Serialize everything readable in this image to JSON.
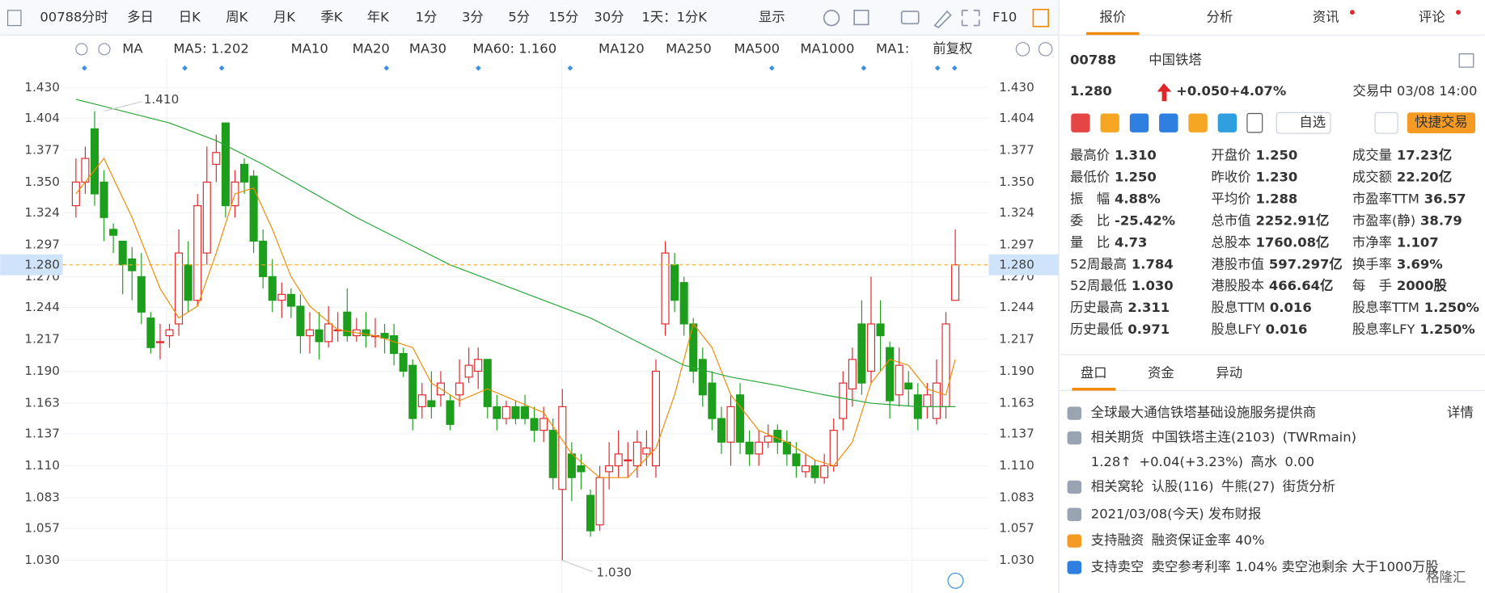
{
  "toolbar": {
    "code": "00788",
    "tabs": [
      "分时",
      "多日",
      "日K",
      "周K",
      "月K",
      "季K",
      "年K",
      "1分",
      "3分",
      "5分",
      "15分",
      "30分",
      "1天：1分K",
      "显示"
    ],
    "active": 2,
    "f10": "F10"
  },
  "ma_legend": {
    "label": "MA",
    "items": [
      {
        "text": "MA5: 1.202",
        "color": "#f08a00"
      },
      {
        "text": "MA10",
        "color": "#bfe0f5"
      },
      {
        "text": "MA20",
        "color": "#f3c6e6"
      },
      {
        "text": "MA30",
        "color": "#cfd8e6"
      },
      {
        "text": "MA60: 1.160",
        "color": "#27a536"
      },
      {
        "text": "MA120",
        "color": "#f6c2cf"
      },
      {
        "text": "MA250",
        "color": "#a8ecf2"
      },
      {
        "text": "MA500",
        "color": "#f7e3a6"
      },
      {
        "text": "MA1000",
        "color": "#d9d2f3"
      },
      {
        "text": "MA1:",
        "color": "#d6dbe3"
      }
    ],
    "adjust": "前复权"
  },
  "chart": {
    "type": "candlestick",
    "ylim": [
      1.008,
      1.448
    ],
    "yticks": [
      {
        "value": 1.43,
        "label": "1.430"
      },
      {
        "value": 1.404,
        "label": "1.404"
      },
      {
        "value": 1.377,
        "label": "1.377"
      },
      {
        "value": 1.35,
        "label": "1.350"
      },
      {
        "value": 1.324,
        "label": "1.324"
      },
      {
        "value": 1.297,
        "label": "1.297"
      },
      {
        "value": 1.27,
        "label": "1.270"
      },
      {
        "value": 1.244,
        "label": "1.244"
      },
      {
        "value": 1.217,
        "label": "1.217"
      },
      {
        "value": 1.19,
        "label": "1.190"
      },
      {
        "value": 1.163,
        "label": "1.163"
      },
      {
        "value": 1.137,
        "label": "1.137"
      },
      {
        "value": 1.11,
        "label": "1.110"
      },
      {
        "value": 1.083,
        "label": "1.083"
      },
      {
        "value": 1.057,
        "label": "1.057"
      },
      {
        "value": 1.03,
        "label": "1.030"
      }
    ],
    "up_color": "#e0262a",
    "down_color": "#1d9e1d",
    "last_price": {
      "value": 1.28,
      "label": "1.280"
    },
    "annotations": [
      {
        "value": 1.41,
        "label": "1.410",
        "index": 3
      },
      {
        "value": 1.03,
        "label": "1.030",
        "index": 52
      }
    ],
    "candles": {
      "open": [
        1.33,
        1.35,
        1.395,
        1.35,
        1.31,
        1.3,
        1.285,
        1.27,
        1.235,
        1.215,
        1.22,
        1.23,
        1.28,
        1.25,
        1.29,
        1.365,
        1.4,
        1.33,
        1.365,
        1.355,
        1.3,
        1.27,
        1.25,
        1.255,
        1.245,
        1.22,
        1.225,
        1.215,
        1.225,
        1.24,
        1.22,
        1.225,
        1.22,
        1.222,
        1.22,
        1.205,
        1.195,
        1.16,
        1.165,
        1.17,
        1.165,
        1.17,
        1.185,
        1.19,
        1.2,
        1.16,
        1.15,
        1.16,
        1.16,
        1.15,
        1.14,
        1.14,
        1.09,
        1.12,
        1.11,
        1.085,
        1.06,
        1.105,
        1.11,
        1.115,
        1.11,
        1.12,
        1.11,
        1.23,
        1.28,
        1.265,
        1.23,
        1.2,
        1.18,
        1.15,
        1.13,
        1.17,
        1.13,
        1.12,
        1.13,
        1.14,
        1.13,
        1.12,
        1.105,
        1.11,
        1.1,
        1.11,
        1.15,
        1.175,
        1.23,
        1.19,
        1.23,
        1.21,
        1.17,
        1.18,
        1.17,
        1.16,
        1.15,
        1.16,
        1.25
      ],
      "high": [
        1.37,
        1.38,
        1.41,
        1.36,
        1.315,
        1.3,
        1.295,
        1.29,
        1.24,
        1.23,
        1.23,
        1.31,
        1.3,
        1.34,
        1.38,
        1.39,
        1.4,
        1.36,
        1.37,
        1.36,
        1.31,
        1.285,
        1.265,
        1.26,
        1.255,
        1.24,
        1.24,
        1.245,
        1.24,
        1.26,
        1.235,
        1.24,
        1.235,
        1.23,
        1.23,
        1.21,
        1.2,
        1.18,
        1.19,
        1.19,
        1.17,
        1.2,
        1.21,
        1.21,
        1.2,
        1.17,
        1.165,
        1.165,
        1.17,
        1.16,
        1.16,
        1.15,
        1.175,
        1.13,
        1.12,
        1.09,
        1.11,
        1.13,
        1.14,
        1.13,
        1.14,
        1.14,
        1.2,
        1.3,
        1.29,
        1.27,
        1.235,
        1.21,
        1.19,
        1.16,
        1.17,
        1.18,
        1.14,
        1.14,
        1.145,
        1.145,
        1.14,
        1.13,
        1.12,
        1.115,
        1.12,
        1.15,
        1.19,
        1.21,
        1.25,
        1.27,
        1.25,
        1.215,
        1.21,
        1.19,
        1.18,
        1.18,
        1.2,
        1.24,
        1.31
      ],
      "low": [
        1.32,
        1.34,
        1.33,
        1.3,
        1.29,
        1.255,
        1.25,
        1.23,
        1.205,
        1.2,
        1.21,
        1.22,
        1.24,
        1.245,
        1.28,
        1.35,
        1.32,
        1.32,
        1.34,
        1.29,
        1.26,
        1.24,
        1.235,
        1.235,
        1.205,
        1.205,
        1.2,
        1.21,
        1.215,
        1.215,
        1.215,
        1.21,
        1.21,
        1.205,
        1.195,
        1.185,
        1.14,
        1.15,
        1.15,
        1.16,
        1.14,
        1.16,
        1.18,
        1.175,
        1.15,
        1.14,
        1.145,
        1.145,
        1.145,
        1.13,
        1.13,
        1.09,
        1.03,
        1.08,
        1.09,
        1.05,
        1.055,
        1.09,
        1.1,
        1.1,
        1.1,
        1.11,
        1.1,
        1.22,
        1.24,
        1.22,
        1.18,
        1.16,
        1.14,
        1.12,
        1.11,
        1.12,
        1.11,
        1.11,
        1.125,
        1.12,
        1.11,
        1.1,
        1.1,
        1.095,
        1.095,
        1.105,
        1.14,
        1.16,
        1.17,
        1.18,
        1.19,
        1.15,
        1.16,
        1.16,
        1.14,
        1.15,
        1.145,
        1.15,
        1.25
      ],
      "close": [
        1.35,
        1.37,
        1.34,
        1.32,
        1.305,
        1.28,
        1.275,
        1.24,
        1.21,
        1.215,
        1.225,
        1.29,
        1.25,
        1.33,
        1.35,
        1.375,
        1.33,
        1.35,
        1.35,
        1.3,
        1.27,
        1.25,
        1.255,
        1.245,
        1.22,
        1.225,
        1.215,
        1.23,
        1.225,
        1.22,
        1.225,
        1.22,
        1.22,
        1.218,
        1.205,
        1.19,
        1.15,
        1.17,
        1.16,
        1.18,
        1.145,
        1.18,
        1.195,
        1.2,
        1.16,
        1.15,
        1.16,
        1.15,
        1.15,
        1.14,
        1.15,
        1.1,
        1.16,
        1.1,
        1.105,
        1.055,
        1.1,
        1.11,
        1.12,
        1.115,
        1.13,
        1.125,
        1.19,
        1.29,
        1.25,
        1.23,
        1.19,
        1.17,
        1.15,
        1.13,
        1.16,
        1.13,
        1.12,
        1.13,
        1.135,
        1.13,
        1.12,
        1.11,
        1.11,
        1.1,
        1.11,
        1.14,
        1.18,
        1.2,
        1.18,
        1.23,
        1.22,
        1.165,
        1.195,
        1.175,
        1.15,
        1.17,
        1.18,
        1.23,
        1.28
      ]
    },
    "series": [
      {
        "name": "MA5",
        "color": "#f08a00",
        "x": [
          0,
          3,
          6,
          9,
          11,
          13,
          15,
          17,
          19,
          21,
          23,
          25,
          28,
          32,
          36,
          38,
          41,
          44,
          47,
          50,
          53,
          56,
          59,
          62,
          64,
          66,
          68,
          70,
          73,
          76,
          79,
          81,
          83,
          85,
          87,
          89,
          91,
          93,
          94
        ],
        "values": [
          1.34,
          1.37,
          1.32,
          1.26,
          1.235,
          1.245,
          1.29,
          1.34,
          1.345,
          1.31,
          1.27,
          1.245,
          1.225,
          1.22,
          1.21,
          1.18,
          1.165,
          1.175,
          1.165,
          1.155,
          1.12,
          1.1,
          1.1,
          1.125,
          1.17,
          1.23,
          1.21,
          1.17,
          1.14,
          1.13,
          1.115,
          1.11,
          1.13,
          1.18,
          1.2,
          1.195,
          1.175,
          1.17,
          1.2
        ]
      },
      {
        "name": "MA60",
        "color": "#27a536",
        "x": [
          0,
          10,
          15,
          20,
          30,
          40,
          50,
          55,
          60,
          65,
          70,
          75,
          80,
          85,
          90,
          94
        ],
        "values": [
          1.42,
          1.4,
          1.385,
          1.365,
          1.32,
          1.28,
          1.25,
          1.235,
          1.215,
          1.195,
          1.185,
          1.178,
          1.17,
          1.163,
          1.16,
          1.16
        ]
      }
    ]
  },
  "panel": {
    "tabs": [
      "报价",
      "分析",
      "资讯",
      "评论"
    ],
    "code": "00788",
    "name": "中国铁塔",
    "price": "1.280",
    "change": "+0.050",
    "change_pct": "+4.07%",
    "status": "交易中 03/08 14:00",
    "watch": "自选",
    "trade": "快捷交易",
    "stats": [
      [
        {
          "label": "最高价",
          "value": "1.310",
          "color": "#e0262a"
        },
        {
          "label": "开盘价",
          "value": "1.250",
          "color": "#e0262a"
        },
        {
          "label": "成交量",
          "value": "17.23亿",
          "color": "#222"
        }
      ],
      [
        {
          "label": "最低价",
          "value": "1.250",
          "color": "#e0262a"
        },
        {
          "label": "昨收价",
          "value": "1.230",
          "color": "#222"
        },
        {
          "label": "成交额",
          "value": "22.20亿",
          "color": "#222"
        }
      ],
      [
        {
          "label": "振　幅",
          "value": "4.88%",
          "color": "#222"
        },
        {
          "label": "平均价",
          "value": "1.288",
          "color": "#e0262a"
        },
        {
          "label": "市盈率TTM",
          "value": "36.57",
          "color": "#222"
        }
      ],
      [
        {
          "label": "委　比",
          "value": "-25.42%",
          "color": "#222"
        },
        {
          "label": "总市值",
          "value": "2252.91亿",
          "color": "#222"
        },
        {
          "label": "市盈率(静)",
          "value": "38.79",
          "color": "#222"
        }
      ],
      [
        {
          "label": "量　比",
          "value": "4.73",
          "color": "#222"
        },
        {
          "label": "总股本",
          "value": "1760.08亿",
          "color": "#222"
        },
        {
          "label": "市净率",
          "value": "1.107",
          "color": "#222"
        }
      ],
      [
        {
          "label": "52周最高",
          "value": "1.784",
          "color": "#e0262a"
        },
        {
          "label": "港股市值",
          "value": "597.297亿",
          "color": "#222"
        },
        {
          "label": "换手率",
          "value": "3.69%",
          "color": "#222"
        }
      ],
      [
        {
          "label": "52周最低",
          "value": "1.030",
          "color": "#1d9e1d"
        },
        {
          "label": "港股股本",
          "value": "466.64亿",
          "color": "#222"
        },
        {
          "label": "每　手",
          "value": "2000股",
          "color": "#222"
        }
      ],
      [
        {
          "label": "历史最高",
          "value": "2.311",
          "color": "#e0262a"
        },
        {
          "label": "股息TTM",
          "value": "0.016",
          "color": "#222"
        },
        {
          "label": "股息率TTM",
          "value": "1.250%",
          "color": "#222"
        }
      ],
      [
        {
          "label": "历史最低",
          "value": "0.971",
          "color": "#1d9e1d"
        },
        {
          "label": "股息LFY",
          "value": "0.016",
          "color": "#222"
        },
        {
          "label": "股息率LFY",
          "value": "1.250%",
          "color": "#222"
        }
      ]
    ],
    "subtabs": [
      "盘口",
      "资金",
      "异动"
    ],
    "info": [
      {
        "segments": [
          {
            "text": "全球最大通信铁塔基础设施服务提供商",
            "color": "#333"
          }
        ],
        "link": "详情"
      },
      {
        "segments": [
          {
            "text": "相关期货",
            "color": "#333"
          },
          {
            "text": "中国铁塔主连(2103)",
            "color": "#1f6fd1"
          },
          {
            "text": "(TWRmain)",
            "color": "#1f6fd1"
          }
        ]
      },
      {
        "segments": [
          {
            "text": "1.28↑",
            "color": "#e0262a"
          },
          {
            "text": "+0.04(+3.23%)",
            "color": "#e0262a"
          },
          {
            "text": "高水",
            "color": "#333"
          },
          {
            "text": "0.00",
            "color": "#e0262a"
          }
        ]
      },
      {
        "segments": [
          {
            "text": "相关窝轮",
            "color": "#333"
          },
          {
            "text": "认股(116)",
            "color": "#1f6fd1"
          },
          {
            "text": "牛熊(27)",
            "color": "#1f6fd1"
          },
          {
            "text": "街货分析",
            "color": "#1f6fd1"
          }
        ]
      },
      {
        "segments": [
          {
            "text": "2021/03/08(今天) 发布财报",
            "color": "#333"
          }
        ]
      },
      {
        "segments": [
          {
            "text": "支持融资",
            "color": "#333"
          },
          {
            "text": "融资保证金率 40%",
            "color": "#333"
          }
        ]
      },
      {
        "segments": [
          {
            "text": "支持卖空",
            "color": "#333"
          },
          {
            "text": "卖空参考利率 1.04% 卖空池剩余 大于1000万股",
            "color": "#333"
          }
        ]
      }
    ],
    "watermark": "格隆汇"
  }
}
